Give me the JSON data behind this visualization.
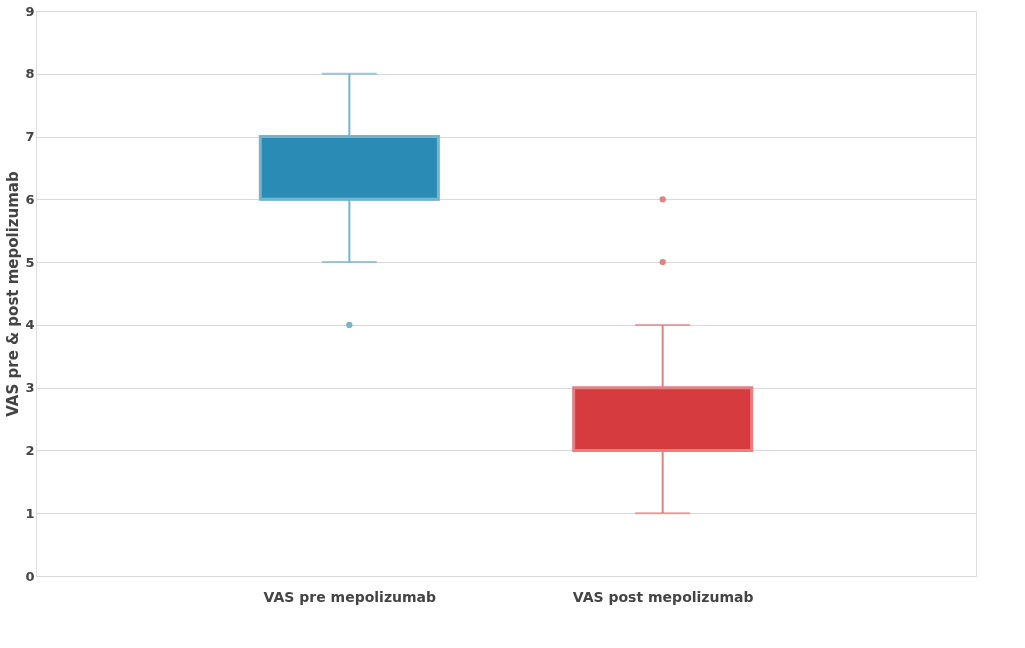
{
  "chart_data": {
    "type": "box",
    "ylabel": "VAS pre & post mepolizumab",
    "categories": [
      "VAS pre mepolizumab",
      "VAS post mepolizumab"
    ],
    "boxes": [
      {
        "low": 5,
        "q1": 6,
        "median": 6,
        "q3": 7,
        "high": 8,
        "outliers": [
          4
        ]
      },
      {
        "low": 1,
        "q1": 2,
        "median": 2,
        "q3": 3,
        "high": 4,
        "outliers": [
          5,
          6
        ]
      }
    ],
    "colors": [
      "#2a8cb5",
      "#d63b40"
    ],
    "ylim": [
      0,
      9
    ],
    "yticks": [
      0,
      1,
      2,
      3,
      4,
      5,
      6,
      7,
      8,
      9
    ],
    "grid": "y"
  }
}
